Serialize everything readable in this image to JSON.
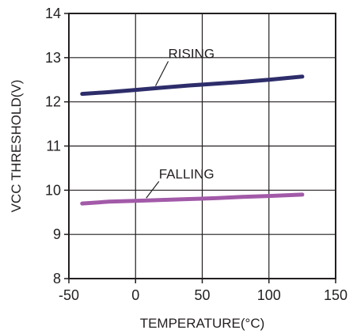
{
  "chart_data": {
    "type": "line",
    "xlabel": "TEMPERATURE(°C)",
    "ylabel": "VCC THRESHOLD(V)",
    "xlim": [
      -50,
      150
    ],
    "ylim": [
      8,
      14
    ],
    "xticks": [
      -50,
      0,
      50,
      100,
      150
    ],
    "yticks": [
      8,
      9,
      10,
      11,
      12,
      13,
      14
    ],
    "xtick_labels": [
      "-50",
      "0",
      "50",
      "100",
      "150"
    ],
    "ytick_labels": [
      "8",
      "9",
      "10",
      "11",
      "12",
      "13",
      "14"
    ],
    "grid": true,
    "series": [
      {
        "name": "RISING",
        "color": "#2e2d6b",
        "x": [
          -40,
          -20,
          0,
          20,
          40,
          60,
          80,
          100,
          125
        ],
        "y": [
          12.18,
          12.22,
          12.27,
          12.32,
          12.37,
          12.41,
          12.45,
          12.5,
          12.57
        ]
      },
      {
        "name": "FALLING",
        "color": "#a25aa8",
        "x": [
          -40,
          -20,
          0,
          20,
          40,
          60,
          80,
          100,
          125
        ],
        "y": [
          9.7,
          9.74,
          9.76,
          9.78,
          9.8,
          9.82,
          9.85,
          9.87,
          9.9
        ]
      }
    ],
    "annotations": [
      {
        "text": "RISING",
        "series": 0,
        "at_x": 15
      },
      {
        "text": "FALLING",
        "series": 1,
        "at_x": 8
      }
    ]
  }
}
